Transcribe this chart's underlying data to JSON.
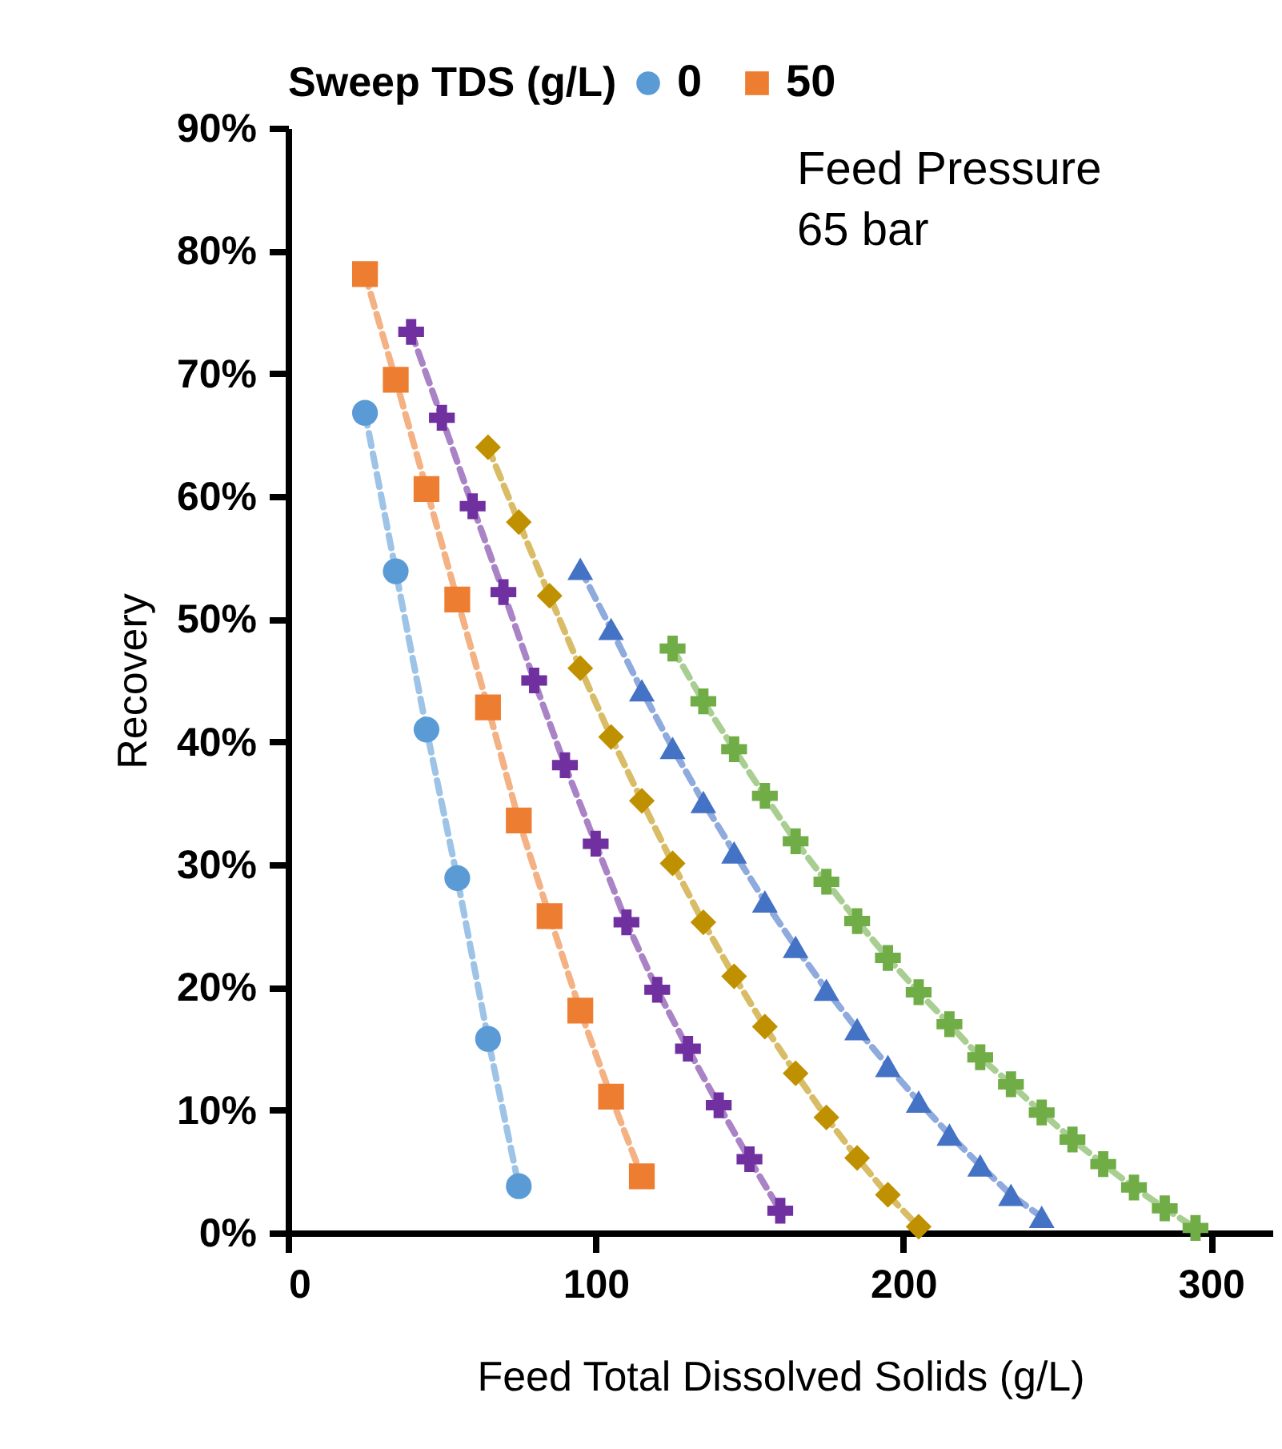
{
  "chart_data": {
    "type": "line",
    "xlabel": "Feed Total Dissolved Solids (g/L)",
    "ylabel": "Recovery",
    "legend_title": "Sweep TDS (g/L)",
    "annotations": [
      "Feed Pressure\n65 bar"
    ],
    "xlim": [
      0,
      320
    ],
    "xticks": [
      0,
      100,
      200,
      300
    ],
    "ylim": [
      0,
      90
    ],
    "yticks": [
      {
        "value": 0,
        "label": "0%"
      },
      {
        "value": 10,
        "label": "10%"
      },
      {
        "value": 20,
        "label": "20%"
      },
      {
        "value": 30,
        "label": "30%"
      },
      {
        "value": 40,
        "label": "40%"
      },
      {
        "value": 50,
        "label": "50%"
      },
      {
        "value": 60,
        "label": "60%"
      },
      {
        "value": 70,
        "label": "70%"
      },
      {
        "value": 80,
        "label": "80%"
      },
      {
        "value": 90,
        "label": "90%"
      }
    ],
    "grid": false,
    "legend": "top",
    "line_style": "dashed",
    "series": [
      {
        "name": "0",
        "color": "#5b9bd5",
        "marker": "circle",
        "x": [
          25,
          35,
          45,
          55,
          65,
          75
        ],
        "values": [
          66.8,
          53.9,
          41.0,
          28.9,
          15.8,
          3.8
        ]
      },
      {
        "name": "50",
        "color": "#ed7d31",
        "marker": "square",
        "x": [
          25,
          35,
          45,
          55,
          65,
          75,
          85,
          95,
          105,
          115
        ],
        "values": [
          78.1,
          69.5,
          60.6,
          51.6,
          42.8,
          33.6,
          25.8,
          18.1,
          11.1,
          4.6
        ]
      },
      {
        "color": "#7030a0",
        "marker": "cross",
        "x": [
          40,
          50,
          60,
          70,
          80,
          90,
          100,
          110,
          120,
          130,
          140,
          150,
          160
        ],
        "values": [
          73.4,
          66.4,
          59.2,
          52.2,
          45.0,
          38.1,
          31.7,
          25.3,
          19.8,
          15.0,
          10.4,
          6.0,
          1.8
        ]
      },
      {
        "color": "#bf9000",
        "marker": "diamond",
        "x": [
          65,
          75,
          85,
          95,
          105,
          115,
          125,
          135,
          145,
          155,
          165,
          175,
          185,
          195,
          205
        ],
        "values": [
          64.0,
          57.9,
          51.9,
          46.0,
          40.4,
          35.2,
          30.1,
          25.3,
          20.9,
          16.8,
          13.0,
          9.4,
          6.1,
          3.1,
          0.5
        ]
      },
      {
        "color": "#4472c4",
        "marker": "triangle",
        "x": [
          95,
          105,
          115,
          125,
          135,
          145,
          155,
          165,
          175,
          185,
          195,
          205,
          215,
          225,
          235,
          245
        ],
        "values": [
          54.1,
          49.2,
          44.2,
          39.5,
          35.1,
          31.0,
          27.0,
          23.3,
          19.8,
          16.6,
          13.6,
          10.7,
          8.0,
          5.5,
          3.1,
          1.3
        ]
      },
      {
        "color": "#70ad47",
        "marker": "cross",
        "x": [
          125,
          135,
          145,
          155,
          165,
          175,
          185,
          195,
          205,
          215,
          225,
          235,
          245,
          255,
          265,
          275,
          285,
          295
        ],
        "values": [
          47.6,
          43.3,
          39.4,
          35.6,
          31.9,
          28.6,
          25.4,
          22.4,
          19.6,
          17.0,
          14.3,
          12.1,
          9.8,
          7.6,
          5.6,
          3.7,
          2.0,
          0.4
        ]
      }
    ]
  }
}
